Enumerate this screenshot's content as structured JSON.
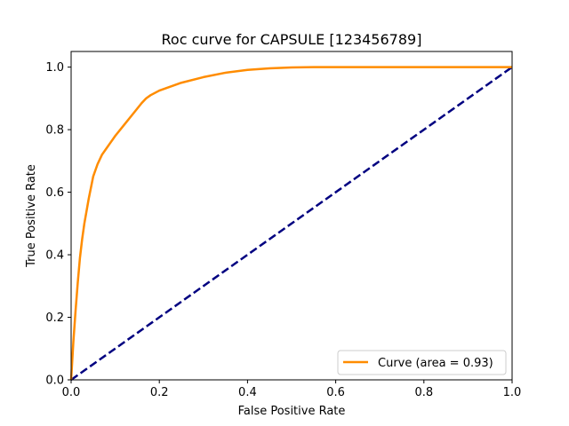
{
  "chart_data": {
    "type": "line",
    "title": "Roc curve for CAPSULE [123456789]",
    "xlabel": "False Positive Rate",
    "ylabel": "True Positive Rate",
    "xlim": [
      0.0,
      1.0
    ],
    "ylim": [
      0.0,
      1.05
    ],
    "xticks": [
      0.0,
      0.2,
      0.4,
      0.6,
      0.8,
      1.0
    ],
    "yticks": [
      0.0,
      0.2,
      0.4,
      0.6,
      0.8,
      1.0
    ],
    "xtick_labels": [
      "0.0",
      "0.2",
      "0.4",
      "0.6",
      "0.8",
      "1.0"
    ],
    "ytick_labels": [
      "0.0",
      "0.2",
      "0.4",
      "0.6",
      "0.8",
      "1.0"
    ],
    "grid": false,
    "legend": {
      "position": "bottom-right"
    },
    "series": [
      {
        "name": "Curve (area = 0.93)",
        "color": "#ff8c00",
        "style": "solid",
        "x": [
          0.0,
          0.005,
          0.01,
          0.015,
          0.02,
          0.025,
          0.03,
          0.04,
          0.05,
          0.06,
          0.07,
          0.08,
          0.09,
          0.1,
          0.12,
          0.14,
          0.16,
          0.17,
          0.18,
          0.2,
          0.25,
          0.3,
          0.35,
          0.4,
          0.45,
          0.5,
          0.55,
          0.6,
          0.7,
          0.8,
          0.9,
          1.0
        ],
        "y": [
          0.0,
          0.12,
          0.22,
          0.31,
          0.39,
          0.45,
          0.5,
          0.58,
          0.65,
          0.69,
          0.72,
          0.74,
          0.76,
          0.78,
          0.815,
          0.85,
          0.885,
          0.9,
          0.91,
          0.925,
          0.95,
          0.968,
          0.982,
          0.991,
          0.996,
          0.999,
          1.0,
          1.0,
          1.0,
          1.0,
          1.0,
          1.0
        ]
      },
      {
        "name": "",
        "color": "#000080",
        "style": "dashed",
        "x": [
          0.0,
          1.0
        ],
        "y": [
          0.0,
          1.0
        ]
      }
    ]
  }
}
